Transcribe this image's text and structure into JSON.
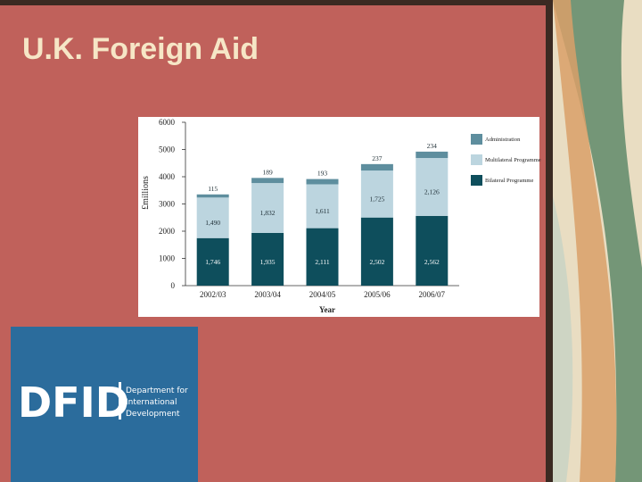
{
  "title": "U.K. Foreign Aid",
  "logo": {
    "acronym": "DFID",
    "lines": [
      "Department for",
      "International",
      "Development"
    ]
  },
  "chart_data": {
    "type": "stacked_bar",
    "y_label": "£millions",
    "x_label": "Year",
    "categories": [
      "2002/03",
      "2003/04",
      "2004/05",
      "2005/06",
      "2006/07"
    ],
    "series": [
      {
        "name": "Bilateral Programme",
        "color": "#0e4e5c",
        "values": [
          1746,
          1935,
          2111,
          2502,
          2562
        ],
        "value_labels": [
          "1,746",
          "1,935",
          "2,111",
          "2,502",
          "2,562"
        ]
      },
      {
        "name": "Multilateral Programme",
        "color": "#bcd5df",
        "values": [
          1490,
          1832,
          1611,
          1725,
          2126
        ],
        "value_labels": [
          "1,490",
          "1,832",
          "1,611",
          "1,725",
          "2,126"
        ]
      },
      {
        "name": "Administration",
        "color": "#5e8e9e",
        "values": [
          115,
          189,
          193,
          237,
          234
        ]
      }
    ],
    "ylim": [
      0,
      6000
    ],
    "yticks": [
      0,
      1000,
      2000,
      3000,
      4000,
      5000,
      6000
    ],
    "grid": false
  }
}
